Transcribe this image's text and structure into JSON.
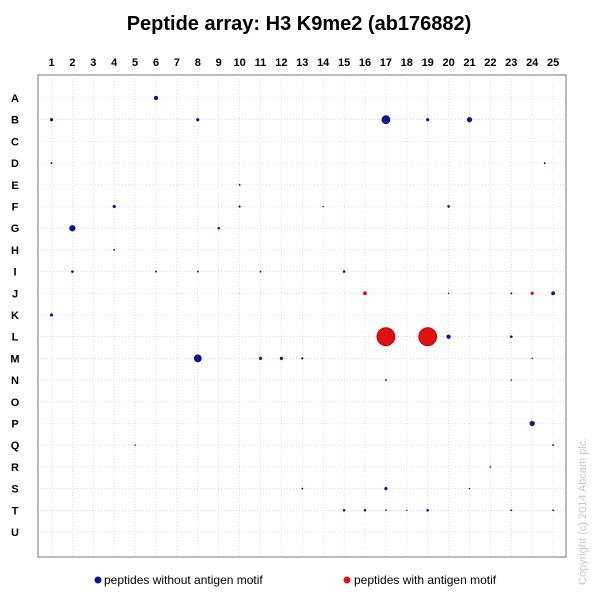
{
  "chart_data": {
    "type": "scatter",
    "title": "Peptide array: H3 K9me2 (ab176882)",
    "columns": [
      "1",
      "2",
      "3",
      "4",
      "5",
      "6",
      "7",
      "8",
      "9",
      "10",
      "11",
      "12",
      "13",
      "14",
      "15",
      "16",
      "17",
      "18",
      "19",
      "20",
      "21",
      "22",
      "23",
      "24",
      "25"
    ],
    "rows": [
      "A",
      "B",
      "C",
      "D",
      "E",
      "F",
      "G",
      "H",
      "I",
      "J",
      "K",
      "L",
      "M",
      "N",
      "O",
      "P",
      "Q",
      "R",
      "S",
      "T",
      "U"
    ],
    "grid": true,
    "legend_position": "bottom",
    "series": [
      {
        "name": "peptides without antigen motif",
        "color": "#0a14a0",
        "points": [
          {
            "col": 6,
            "row": "A",
            "size": 2
          },
          {
            "col": 1,
            "row": "B",
            "size": 1.5
          },
          {
            "col": 8,
            "row": "B",
            "size": 1.5
          },
          {
            "col": 17,
            "row": "B",
            "size": 4
          },
          {
            "col": 19,
            "row": "B",
            "size": 1.5
          },
          {
            "col": 21,
            "row": "B",
            "size": 2.5
          },
          {
            "col": 1,
            "row": "D",
            "size": 0.8
          },
          {
            "col": 24.6,
            "row": "D",
            "size": 0.8
          },
          {
            "col": 10,
            "row": "E",
            "size": 0.8
          },
          {
            "col": 4,
            "row": "F",
            "size": 1.5
          },
          {
            "col": 10,
            "row": "F",
            "size": 1
          },
          {
            "col": 14,
            "row": "F",
            "size": 0.6
          },
          {
            "col": 20,
            "row": "F",
            "size": 1.2
          },
          {
            "col": 2,
            "row": "G",
            "size": 3
          },
          {
            "col": 9,
            "row": "G",
            "size": 1.2
          },
          {
            "col": 4,
            "row": "H",
            "size": 0.8
          },
          {
            "col": 2,
            "row": "I",
            "size": 1.2
          },
          {
            "col": 6,
            "row": "I",
            "size": 0.8
          },
          {
            "col": 8,
            "row": "I",
            "size": 0.8
          },
          {
            "col": 11,
            "row": "I",
            "size": 0.8
          },
          {
            "col": 15,
            "row": "I",
            "size": 1.2
          },
          {
            "col": 20,
            "row": "J",
            "size": 0.6
          },
          {
            "col": 23,
            "row": "J",
            "size": 0.8
          },
          {
            "col": 25,
            "row": "J",
            "size": 1.8
          },
          {
            "col": 1,
            "row": "K",
            "size": 1.5
          },
          {
            "col": 20,
            "row": "L",
            "size": 2
          },
          {
            "col": 23,
            "row": "L",
            "size": 1.2
          },
          {
            "col": 8,
            "row": "M",
            "size": 3.5
          },
          {
            "col": 11,
            "row": "M",
            "size": 1.5
          },
          {
            "col": 12,
            "row": "M",
            "size": 1.5
          },
          {
            "col": 13,
            "row": "M",
            "size": 1
          },
          {
            "col": 24,
            "row": "M",
            "size": 0.6
          },
          {
            "col": 17,
            "row": "N",
            "size": 0.8
          },
          {
            "col": 23,
            "row": "N",
            "size": 0.6
          },
          {
            "col": 24,
            "row": "P",
            "size": 2.5
          },
          {
            "col": 5,
            "row": "Q",
            "size": 0.6
          },
          {
            "col": 25,
            "row": "Q",
            "size": 0.8
          },
          {
            "col": 13,
            "row": "S",
            "size": 0.8
          },
          {
            "col": 17,
            "row": "S",
            "size": 1.5
          },
          {
            "col": 21,
            "row": "S",
            "size": 0.6
          },
          {
            "col": 15,
            "row": "T",
            "size": 1.2
          },
          {
            "col": 16,
            "row": "T",
            "size": 1.2
          },
          {
            "col": 18,
            "row": "T",
            "size": 0.6
          },
          {
            "col": 19,
            "row": "T",
            "size": 1.2
          },
          {
            "col": 23,
            "row": "T",
            "size": 0.8
          },
          {
            "col": 25,
            "row": "T",
            "size": 0.8
          }
        ]
      },
      {
        "name": "peptides with antigen motif",
        "color": "#e01010",
        "points": [
          {
            "col": 16,
            "row": "J",
            "size": 1.8
          },
          {
            "col": 24,
            "row": "J",
            "size": 1.5
          },
          {
            "col": 17,
            "row": "L",
            "size": 9
          },
          {
            "col": 19,
            "row": "L",
            "size": 9
          },
          {
            "col": 22,
            "row": "R",
            "size": 0.8
          },
          {
            "col": 17,
            "row": "T",
            "size": 0.8
          }
        ]
      }
    ]
  },
  "copyright": "Copyright (c) 2014 Abcam plc."
}
